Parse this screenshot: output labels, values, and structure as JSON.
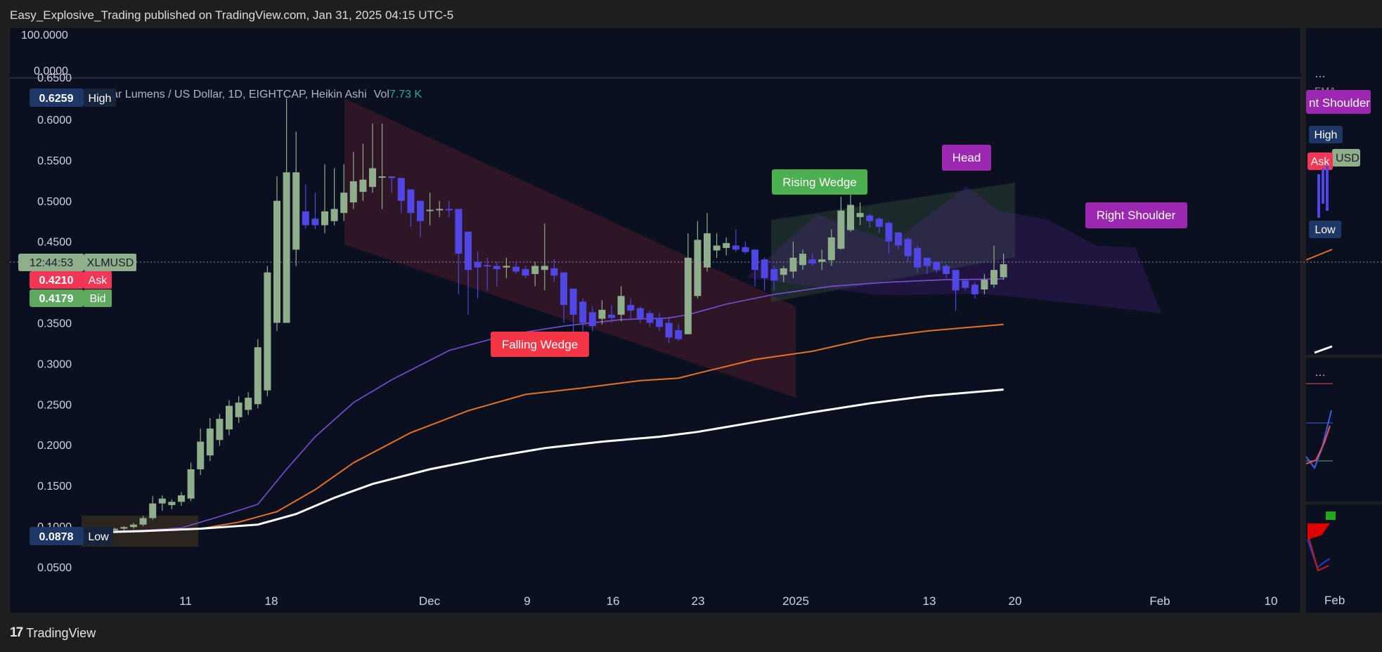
{
  "header": {
    "publish_line": "Easy_Explosive_Trading published on TradingView.com, Jan 31, 2025 04:15 UTC-5"
  },
  "footer": {
    "brand": "TradingView",
    "logo_glyph": "17"
  },
  "legend": {
    "title": "Stellar Lumens / US Dollar, 1D, EIGHTCAP, Heikin Ashi",
    "vol_label": "Vol",
    "vol_value": "7.73 K"
  },
  "osc_panel": {
    "top_label": "100.0000",
    "bottom_label": "0.0000"
  },
  "badges": {
    "high": {
      "value": "0.6259",
      "label": "High"
    },
    "countdown": {
      "value": "12:44:53",
      "label": "XLMUSD"
    },
    "ask": {
      "value": "0.4210",
      "label": "Ask"
    },
    "bid": {
      "value": "0.4179",
      "label": "Bid"
    },
    "low": {
      "value": "0.0878",
      "label": "Low"
    }
  },
  "annotations": {
    "falling_wedge": "Falling Wedge",
    "rising_wedge": "Rising Wedge",
    "head": "Head",
    "right_shoulder": "Right Shoulder"
  },
  "side_panel": {
    "menu_dots": "…",
    "ema_label": "EMA…",
    "shoulder_label": "nt Shoulder",
    "high_label": "High",
    "ask_label": "Ask",
    "usd_label": "USD",
    "low_label": "Low",
    "date_label": "Feb"
  },
  "colors": {
    "background": "#0b1020",
    "bull_candle": "#8fae8c",
    "bear_candle": "#5046e5",
    "ema_purple": "#7a4fd6",
    "ema_orange": "#e8711f",
    "ema_white": "#ffffff",
    "ask_red": "#f23655",
    "bid_green": "#5ea860",
    "high_low_badge": "#1e3766",
    "falling_wedge_fill": "#5a2030",
    "rising_wedge_fill": "#2e4a3a",
    "pattern_purple": "#8a3cc6"
  },
  "chart_data": {
    "type": "candlestick",
    "style": "Heikin Ashi",
    "symbol": "XLMUSD",
    "timeframe": "1D",
    "y_ticks": [
      0.05,
      0.1,
      0.15,
      0.2,
      0.25,
      0.3,
      0.35,
      0.45,
      0.5,
      0.55,
      0.6
    ],
    "y_partial_top": 0.65,
    "x_ticks": [
      "11",
      "18",
      "Dec",
      "9",
      "16",
      "23",
      "2025",
      "13",
      "20",
      "Feb",
      "10"
    ],
    "ylim": [
      0.01,
      0.66
    ],
    "candles": [
      {
        "o": 0.092,
        "h": 0.094,
        "l": 0.09,
        "c": 0.093
      },
      {
        "o": 0.093,
        "h": 0.095,
        "l": 0.09,
        "c": 0.094
      },
      {
        "o": 0.094,
        "h": 0.096,
        "l": 0.091,
        "c": 0.095
      },
      {
        "o": 0.095,
        "h": 0.098,
        "l": 0.093,
        "c": 0.097
      },
      {
        "o": 0.097,
        "h": 0.1,
        "l": 0.095,
        "c": 0.099
      },
      {
        "o": 0.099,
        "h": 0.104,
        "l": 0.097,
        "c": 0.102
      },
      {
        "o": 0.102,
        "h": 0.113,
        "l": 0.1,
        "c": 0.11
      },
      {
        "o": 0.11,
        "h": 0.137,
        "l": 0.108,
        "c": 0.128
      },
      {
        "o": 0.128,
        "h": 0.138,
        "l": 0.119,
        "c": 0.134
      },
      {
        "o": 0.126,
        "h": 0.133,
        "l": 0.121,
        "c": 0.13
      },
      {
        "o": 0.13,
        "h": 0.142,
        "l": 0.125,
        "c": 0.138
      },
      {
        "o": 0.134,
        "h": 0.178,
        "l": 0.131,
        "c": 0.17
      },
      {
        "o": 0.17,
        "h": 0.22,
        "l": 0.163,
        "c": 0.204
      },
      {
        "o": 0.187,
        "h": 0.233,
        "l": 0.18,
        "c": 0.22
      },
      {
        "o": 0.206,
        "h": 0.238,
        "l": 0.199,
        "c": 0.232
      },
      {
        "o": 0.219,
        "h": 0.255,
        "l": 0.212,
        "c": 0.248
      },
      {
        "o": 0.234,
        "h": 0.26,
        "l": 0.227,
        "c": 0.252
      },
      {
        "o": 0.243,
        "h": 0.265,
        "l": 0.237,
        "c": 0.258
      },
      {
        "o": 0.25,
        "h": 0.33,
        "l": 0.245,
        "c": 0.32
      },
      {
        "o": 0.267,
        "h": 0.42,
        "l": 0.26,
        "c": 0.412
      },
      {
        "o": 0.35,
        "h": 0.53,
        "l": 0.34,
        "c": 0.5
      },
      {
        "o": 0.35,
        "h": 0.626,
        "l": 0.35,
        "c": 0.535
      },
      {
        "o": 0.44,
        "h": 0.585,
        "l": 0.42,
        "c": 0.535
      },
      {
        "o": 0.487,
        "h": 0.52,
        "l": 0.466,
        "c": 0.47
      },
      {
        "o": 0.478,
        "h": 0.51,
        "l": 0.465,
        "c": 0.47
      },
      {
        "o": 0.47,
        "h": 0.545,
        "l": 0.46,
        "c": 0.487
      },
      {
        "o": 0.475,
        "h": 0.54,
        "l": 0.47,
        "c": 0.49
      },
      {
        "o": 0.485,
        "h": 0.545,
        "l": 0.475,
        "c": 0.51
      },
      {
        "o": 0.498,
        "h": 0.56,
        "l": 0.49,
        "c": 0.524
      },
      {
        "o": 0.511,
        "h": 0.57,
        "l": 0.5,
        "c": 0.526
      },
      {
        "o": 0.517,
        "h": 0.595,
        "l": 0.51,
        "c": 0.54
      },
      {
        "o": 0.529,
        "h": 0.595,
        "l": 0.49,
        "c": 0.53
      },
      {
        "o": 0.53,
        "h": 0.53,
        "l": 0.51,
        "c": 0.528
      },
      {
        "o": 0.528,
        "h": 0.528,
        "l": 0.485,
        "c": 0.5
      },
      {
        "o": 0.514,
        "h": 0.514,
        "l": 0.468,
        "c": 0.485
      },
      {
        "o": 0.5,
        "h": 0.5,
        "l": 0.455,
        "c": 0.475
      },
      {
        "o": 0.488,
        "h": 0.51,
        "l": 0.47,
        "c": 0.489
      },
      {
        "o": 0.489,
        "h": 0.5,
        "l": 0.48,
        "c": 0.49
      },
      {
        "o": 0.49,
        "h": 0.5,
        "l": 0.48,
        "c": 0.489
      },
      {
        "o": 0.49,
        "h": 0.49,
        "l": 0.385,
        "c": 0.435
      },
      {
        "o": 0.462,
        "h": 0.462,
        "l": 0.36,
        "c": 0.415
      },
      {
        "o": 0.425,
        "h": 0.438,
        "l": 0.38,
        "c": 0.418
      },
      {
        "o": 0.421,
        "h": 0.43,
        "l": 0.39,
        "c": 0.42
      },
      {
        "o": 0.42,
        "h": 0.425,
        "l": 0.395,
        "c": 0.416
      },
      {
        "o": 0.418,
        "h": 0.43,
        "l": 0.405,
        "c": 0.42
      },
      {
        "o": 0.419,
        "h": 0.425,
        "l": 0.41,
        "c": 0.413
      },
      {
        "o": 0.416,
        "h": 0.42,
        "l": 0.405,
        "c": 0.408
      },
      {
        "o": 0.41,
        "h": 0.425,
        "l": 0.395,
        "c": 0.42
      },
      {
        "o": 0.415,
        "h": 0.472,
        "l": 0.39,
        "c": 0.42
      },
      {
        "o": 0.417,
        "h": 0.428,
        "l": 0.4,
        "c": 0.408
      },
      {
        "o": 0.412,
        "h": 0.412,
        "l": 0.35,
        "c": 0.372
      },
      {
        "o": 0.392,
        "h": 0.392,
        "l": 0.31,
        "c": 0.36
      },
      {
        "o": 0.376,
        "h": 0.38,
        "l": 0.34,
        "c": 0.35
      },
      {
        "o": 0.363,
        "h": 0.37,
        "l": 0.34,
        "c": 0.346
      },
      {
        "o": 0.355,
        "h": 0.378,
        "l": 0.348,
        "c": 0.366
      },
      {
        "o": 0.36,
        "h": 0.372,
        "l": 0.35,
        "c": 0.356
      },
      {
        "o": 0.36,
        "h": 0.395,
        "l": 0.352,
        "c": 0.383
      },
      {
        "o": 0.372,
        "h": 0.38,
        "l": 0.355,
        "c": 0.365
      },
      {
        "o": 0.368,
        "h": 0.37,
        "l": 0.35,
        "c": 0.355
      },
      {
        "o": 0.362,
        "h": 0.365,
        "l": 0.345,
        "c": 0.35
      },
      {
        "o": 0.356,
        "h": 0.362,
        "l": 0.34,
        "c": 0.345
      },
      {
        "o": 0.35,
        "h": 0.358,
        "l": 0.325,
        "c": 0.332
      },
      {
        "o": 0.341,
        "h": 0.348,
        "l": 0.328,
        "c": 0.33
      },
      {
        "o": 0.336,
        "h": 0.46,
        "l": 0.336,
        "c": 0.43
      },
      {
        "o": 0.383,
        "h": 0.475,
        "l": 0.38,
        "c": 0.452
      },
      {
        "o": 0.418,
        "h": 0.485,
        "l": 0.413,
        "c": 0.46
      },
      {
        "o": 0.439,
        "h": 0.46,
        "l": 0.43,
        "c": 0.445
      },
      {
        "o": 0.442,
        "h": 0.455,
        "l": 0.433,
        "c": 0.448
      },
      {
        "o": 0.445,
        "h": 0.465,
        "l": 0.437,
        "c": 0.44
      },
      {
        "o": 0.443,
        "h": 0.45,
        "l": 0.435,
        "c": 0.437
      },
      {
        "o": 0.44,
        "h": 0.44,
        "l": 0.395,
        "c": 0.415
      },
      {
        "o": 0.428,
        "h": 0.43,
        "l": 0.39,
        "c": 0.405
      },
      {
        "o": 0.416,
        "h": 0.42,
        "l": 0.39,
        "c": 0.402
      },
      {
        "o": 0.409,
        "h": 0.42,
        "l": 0.4,
        "c": 0.417
      },
      {
        "o": 0.413,
        "h": 0.45,
        "l": 0.405,
        "c": 0.43
      },
      {
        "o": 0.421,
        "h": 0.44,
        "l": 0.415,
        "c": 0.435
      },
      {
        "o": 0.428,
        "h": 0.435,
        "l": 0.42,
        "c": 0.423
      },
      {
        "o": 0.425,
        "h": 0.44,
        "l": 0.415,
        "c": 0.428
      },
      {
        "o": 0.427,
        "h": 0.465,
        "l": 0.42,
        "c": 0.455
      },
      {
        "o": 0.441,
        "h": 0.505,
        "l": 0.44,
        "c": 0.488
      },
      {
        "o": 0.464,
        "h": 0.515,
        "l": 0.462,
        "c": 0.495
      },
      {
        "o": 0.48,
        "h": 0.498,
        "l": 0.47,
        "c": 0.485
      },
      {
        "o": 0.482,
        "h": 0.485,
        "l": 0.467,
        "c": 0.475
      },
      {
        "o": 0.478,
        "h": 0.48,
        "l": 0.46,
        "c": 0.468
      },
      {
        "o": 0.473,
        "h": 0.475,
        "l": 0.435,
        "c": 0.45
      },
      {
        "o": 0.461,
        "h": 0.462,
        "l": 0.44,
        "c": 0.445
      },
      {
        "o": 0.453,
        "h": 0.455,
        "l": 0.425,
        "c": 0.432
      },
      {
        "o": 0.442,
        "h": 0.445,
        "l": 0.412,
        "c": 0.418
      },
      {
        "o": 0.43,
        "h": 0.43,
        "l": 0.41,
        "c": 0.42
      },
      {
        "o": 0.425,
        "h": 0.425,
        "l": 0.412,
        "c": 0.415
      },
      {
        "o": 0.42,
        "h": 0.422,
        "l": 0.405,
        "c": 0.41
      },
      {
        "o": 0.415,
        "h": 0.415,
        "l": 0.365,
        "c": 0.39
      },
      {
        "o": 0.402,
        "h": 0.403,
        "l": 0.39,
        "c": 0.393
      },
      {
        "o": 0.397,
        "h": 0.4,
        "l": 0.38,
        "c": 0.385
      },
      {
        "o": 0.391,
        "h": 0.41,
        "l": 0.385,
        "c": 0.403
      },
      {
        "o": 0.397,
        "h": 0.445,
        "l": 0.393,
        "c": 0.415
      },
      {
        "o": 0.406,
        "h": 0.435,
        "l": 0.403,
        "c": 0.422
      }
    ],
    "series": [
      {
        "points": [
          [
            0,
            0.093
          ],
          [
            6,
            0.095
          ],
          [
            10,
            0.098
          ],
          [
            14,
            0.112
          ],
          [
            18,
            0.127
          ],
          [
            21,
            0.17
          ],
          [
            24,
            0.21
          ],
          [
            28,
            0.252
          ],
          [
            32,
            0.28
          ],
          [
            38,
            0.316
          ],
          [
            44,
            0.335
          ],
          [
            50,
            0.346
          ],
          [
            56,
            0.354
          ],
          [
            61,
            0.356
          ],
          [
            63,
            0.36
          ],
          [
            67,
            0.373
          ],
          [
            72,
            0.385
          ],
          [
            78,
            0.395
          ],
          [
            84,
            0.4
          ],
          [
            90,
            0.403
          ],
          [
            96,
            0.404
          ]
        ]
      },
      {
        "points": [
          [
            0,
            0.092
          ],
          [
            6,
            0.094
          ],
          [
            12,
            0.097
          ],
          [
            16,
            0.105
          ],
          [
            20,
            0.118
          ],
          [
            24,
            0.145
          ],
          [
            28,
            0.178
          ],
          [
            34,
            0.215
          ],
          [
            40,
            0.242
          ],
          [
            46,
            0.262
          ],
          [
            52,
            0.27
          ],
          [
            58,
            0.279
          ],
          [
            62,
            0.282
          ],
          [
            64,
            0.288
          ],
          [
            70,
            0.305
          ],
          [
            76,
            0.315
          ],
          [
            82,
            0.331
          ],
          [
            88,
            0.34
          ],
          [
            92,
            0.344
          ],
          [
            96,
            0.348
          ]
        ]
      },
      {
        "points": [
          [
            0,
            0.092
          ],
          [
            6,
            0.094
          ],
          [
            12,
            0.097
          ],
          [
            18,
            0.102
          ],
          [
            22,
            0.115
          ],
          [
            26,
            0.135
          ],
          [
            30,
            0.152
          ],
          [
            36,
            0.17
          ],
          [
            42,
            0.184
          ],
          [
            48,
            0.196
          ],
          [
            54,
            0.204
          ],
          [
            60,
            0.21
          ],
          [
            64,
            0.216
          ],
          [
            70,
            0.228
          ],
          [
            76,
            0.24
          ],
          [
            82,
            0.251
          ],
          [
            88,
            0.26
          ],
          [
            92,
            0.264
          ],
          [
            96,
            0.268
          ]
        ]
      }
    ]
  }
}
